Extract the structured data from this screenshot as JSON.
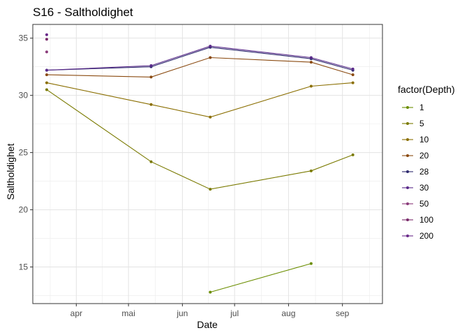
{
  "chart_data": {
    "type": "line",
    "title": "S16  -  Saltholdighet",
    "xlabel": "Date",
    "ylabel": "Saltholdighet",
    "xlim": [
      "2023-03-07",
      "2023-09-24"
    ],
    "ylim": [
      11.8,
      36.2
    ],
    "x_ticks": [
      {
        "date": "2023-04-01",
        "label": "apr"
      },
      {
        "date": "2023-05-01",
        "label": "mai"
      },
      {
        "date": "2023-06-01",
        "label": "jun"
      },
      {
        "date": "2023-07-01",
        "label": "jul"
      },
      {
        "date": "2023-08-01",
        "label": "aug"
      },
      {
        "date": "2023-09-01",
        "label": "sep"
      }
    ],
    "y_ticks": [
      15,
      20,
      25,
      30,
      35
    ],
    "grid": true,
    "legend_title": "factor(Depth)",
    "legend_position": "right",
    "series": [
      {
        "name": "1",
        "color": "#6b8e00",
        "points": [
          [
            "2023-06-17",
            12.8
          ],
          [
            "2023-08-14",
            15.3
          ]
        ]
      },
      {
        "name": "5",
        "color": "#7a7a00",
        "points": [
          [
            "2023-03-15",
            30.5
          ],
          [
            "2023-05-14",
            24.2
          ],
          [
            "2023-06-17",
            21.8
          ],
          [
            "2023-08-14",
            23.4
          ],
          [
            "2023-09-07",
            24.8
          ]
        ]
      },
      {
        "name": "10",
        "color": "#8a6e00",
        "points": [
          [
            "2023-03-15",
            31.1
          ],
          [
            "2023-05-14",
            29.2
          ],
          [
            "2023-06-17",
            28.1
          ],
          [
            "2023-08-14",
            30.8
          ],
          [
            "2023-09-07",
            31.1
          ]
        ]
      },
      {
        "name": "20",
        "color": "#8a4a10",
        "points": [
          [
            "2023-03-15",
            31.8
          ],
          [
            "2023-05-14",
            31.6
          ],
          [
            "2023-06-17",
            33.3
          ],
          [
            "2023-08-14",
            32.9
          ],
          [
            "2023-09-07",
            31.8
          ]
        ]
      },
      {
        "name": "28",
        "color": "#2e2a6e",
        "points": [
          [
            "2023-03-15",
            32.2
          ],
          [
            "2023-05-14",
            32.5
          ],
          [
            "2023-06-17",
            34.2
          ],
          [
            "2023-08-14",
            33.2
          ],
          [
            "2023-09-07",
            32.2
          ]
        ]
      },
      {
        "name": "30",
        "color": "#5a2a8a",
        "points": [
          [
            "2023-03-15",
            32.2
          ],
          [
            "2023-05-14",
            32.6
          ],
          [
            "2023-06-17",
            34.3
          ],
          [
            "2023-08-14",
            33.3
          ],
          [
            "2023-09-07",
            32.3
          ]
        ]
      },
      {
        "name": "50",
        "color": "#8a3a7a",
        "points": [
          [
            "2023-03-15",
            33.8
          ]
        ]
      },
      {
        "name": "100",
        "color": "#7a2a6a",
        "points": [
          [
            "2023-03-15",
            34.9
          ]
        ]
      },
      {
        "name": "200",
        "color": "#6a2a8a",
        "points": [
          [
            "2023-03-15",
            35.3
          ]
        ]
      }
    ]
  }
}
